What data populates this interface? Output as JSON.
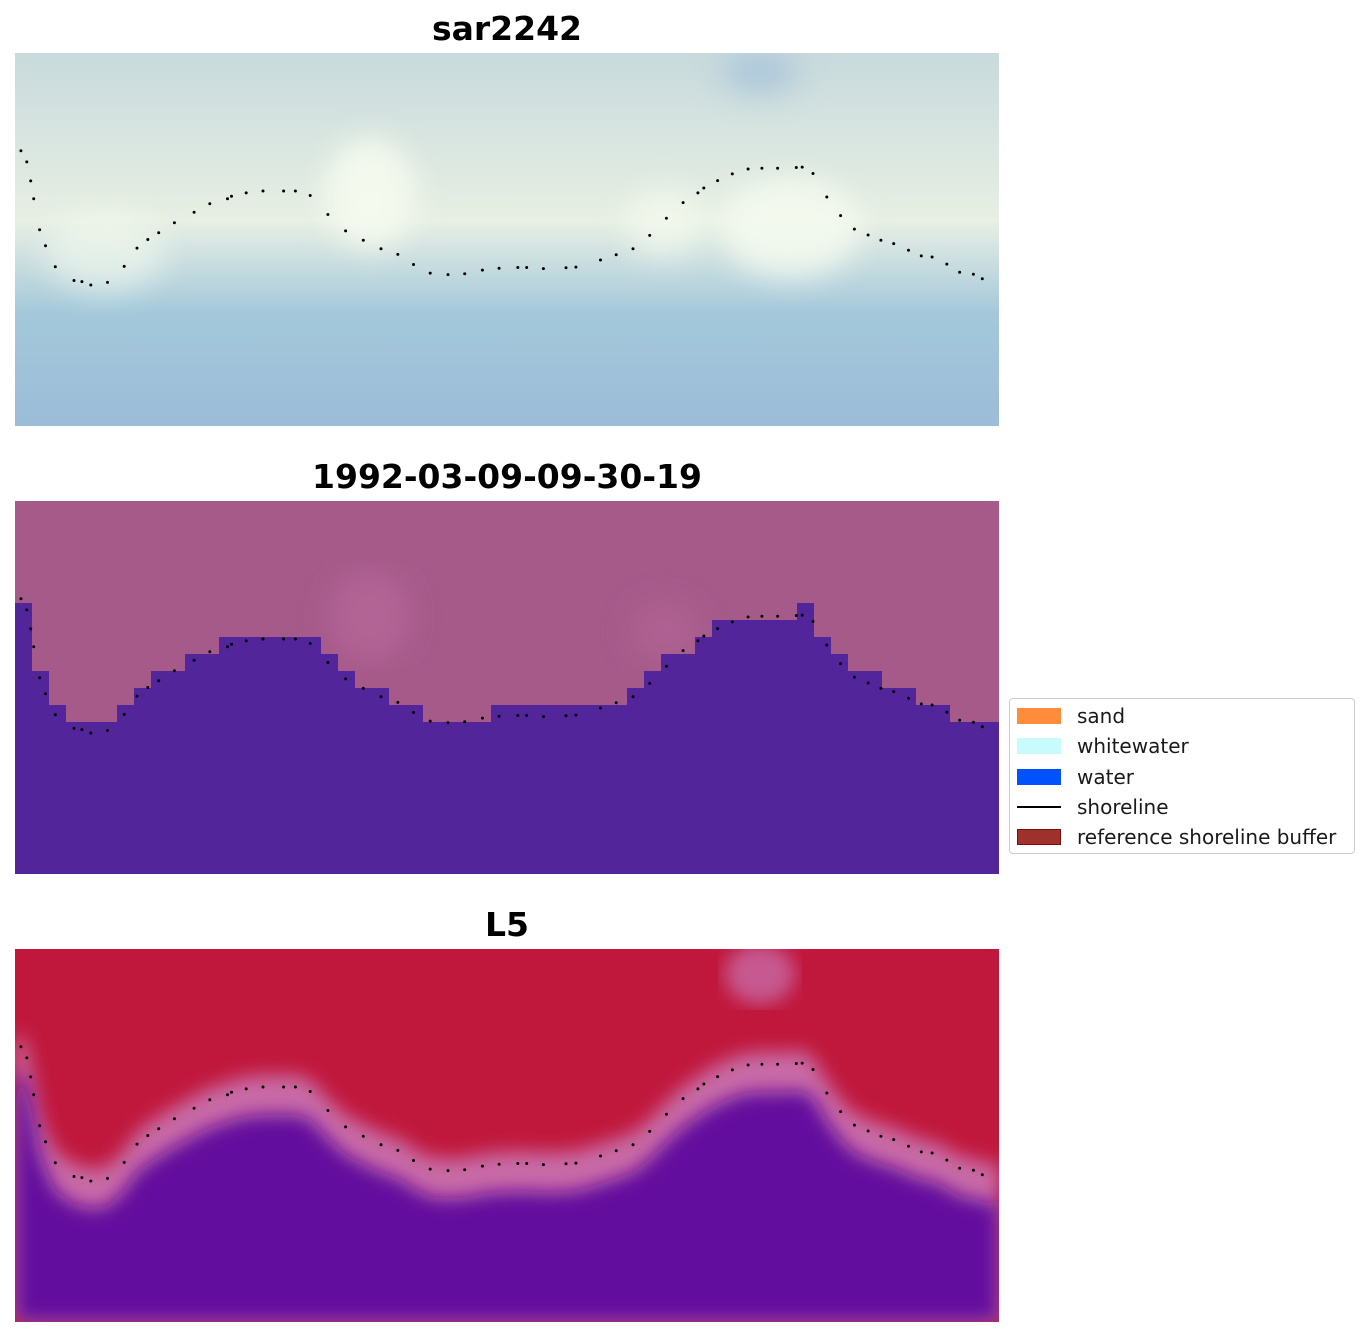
{
  "legend": {
    "items": [
      {
        "label": "sand",
        "kind": "patch",
        "color": "#ff8c3a"
      },
      {
        "label": "whitewater",
        "kind": "patch",
        "color": "#c8fcfc"
      },
      {
        "label": "water",
        "kind": "patch",
        "color": "#0052ff"
      },
      {
        "label": "shoreline",
        "kind": "line",
        "color": "#000000"
      },
      {
        "label": "reference shoreline buffer",
        "kind": "patch",
        "color": "#a0302c",
        "edge": "#7a1010"
      }
    ]
  },
  "chart_data": [
    {
      "type": "heatmap",
      "title": "sar2242",
      "style": "rgb-composite",
      "grid": false,
      "colors": {
        "land": "#c8dadc",
        "wet_sand": "#e8efe4",
        "bright": "#f6fbf0",
        "water": "#a4c8da",
        "deep_water": "#9cbcd8"
      }
    },
    {
      "type": "heatmap",
      "title": "1992-03-09-09-30-19",
      "style": "classified-overlay",
      "grid": false,
      "colors": {
        "land": "#a55a8a",
        "bright": "#b86a9a",
        "water": "#52259a"
      }
    },
    {
      "type": "heatmap",
      "title": "L5",
      "style": "probability-map",
      "grid": false,
      "colors": {
        "land": "#c0183c",
        "transition": "#c86aa6",
        "water": "#64109e"
      }
    }
  ],
  "shoreline_points": [
    [
      0.006,
      0.262
    ],
    [
      0.012,
      0.292
    ],
    [
      0.016,
      0.343
    ],
    [
      0.019,
      0.391
    ],
    [
      0.025,
      0.474
    ],
    [
      0.031,
      0.517
    ],
    [
      0.041,
      0.573
    ],
    [
      0.06,
      0.61
    ],
    [
      0.068,
      0.613
    ],
    [
      0.077,
      0.622
    ],
    [
      0.094,
      0.615
    ],
    [
      0.111,
      0.572
    ],
    [
      0.124,
      0.523
    ],
    [
      0.135,
      0.5
    ],
    [
      0.146,
      0.482
    ],
    [
      0.162,
      0.455
    ],
    [
      0.182,
      0.427
    ],
    [
      0.198,
      0.404
    ],
    [
      0.216,
      0.391
    ],
    [
      0.22,
      0.384
    ],
    [
      0.235,
      0.375
    ],
    [
      0.252,
      0.37
    ],
    [
      0.273,
      0.37
    ],
    [
      0.285,
      0.37
    ],
    [
      0.3,
      0.382
    ],
    [
      0.318,
      0.433
    ],
    [
      0.336,
      0.477
    ],
    [
      0.354,
      0.502
    ],
    [
      0.372,
      0.525
    ],
    [
      0.389,
      0.54
    ],
    [
      0.405,
      0.567
    ],
    [
      0.422,
      0.59
    ],
    [
      0.44,
      0.594
    ],
    [
      0.457,
      0.592
    ],
    [
      0.475,
      0.582
    ],
    [
      0.492,
      0.577
    ],
    [
      0.511,
      0.575
    ],
    [
      0.52,
      0.575
    ],
    [
      0.537,
      0.578
    ],
    [
      0.56,
      0.576
    ],
    [
      0.57,
      0.574
    ],
    [
      0.595,
      0.555
    ],
    [
      0.611,
      0.541
    ],
    [
      0.628,
      0.525
    ],
    [
      0.645,
      0.489
    ],
    [
      0.662,
      0.443
    ],
    [
      0.679,
      0.401
    ],
    [
      0.694,
      0.375
    ],
    [
      0.7,
      0.362
    ],
    [
      0.714,
      0.342
    ],
    [
      0.729,
      0.324
    ],
    [
      0.745,
      0.311
    ],
    [
      0.759,
      0.309
    ],
    [
      0.775,
      0.309
    ],
    [
      0.794,
      0.307
    ],
    [
      0.8,
      0.306
    ],
    [
      0.811,
      0.323
    ],
    [
      0.825,
      0.386
    ],
    [
      0.839,
      0.436
    ],
    [
      0.853,
      0.472
    ],
    [
      0.867,
      0.488
    ],
    [
      0.88,
      0.502
    ],
    [
      0.893,
      0.511
    ],
    [
      0.908,
      0.529
    ],
    [
      0.921,
      0.544
    ],
    [
      0.932,
      0.547
    ],
    [
      0.947,
      0.566
    ],
    [
      0.96,
      0.588
    ],
    [
      0.974,
      0.593
    ],
    [
      0.983,
      0.605
    ]
  ]
}
